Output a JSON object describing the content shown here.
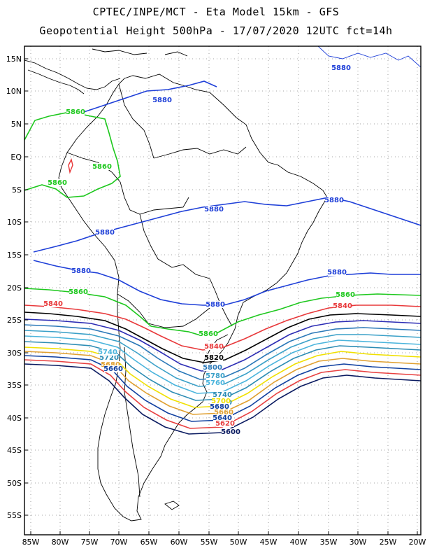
{
  "title_line1": "CPTEC/INPE/MCT  -   Eta Model 15km  -  GFS",
  "title_line2": "Geopotential Height 500hPa  -  17/07/2020 12UTC fct=14h",
  "lat_labels": [
    "15N",
    "10N",
    "5N",
    "EQ",
    "5S",
    "10S",
    "15S",
    "20S",
    "25S",
    "30S",
    "35S",
    "40S",
    "45S",
    "50S",
    "55S"
  ],
  "lon_labels": [
    "85W",
    "80W",
    "75W",
    "70W",
    "65W",
    "60W",
    "55W",
    "50W",
    "45W",
    "40W",
    "35W",
    "30W",
    "25W",
    "20W"
  ],
  "contour_colors": {
    "5880": "#1e3fd8",
    "5860": "#1ec81e",
    "5840": "#e8383a",
    "5820": "#000000",
    "5800": "#2c2cb4",
    "5780": "#2a78b8",
    "5760": "#3aa0c8",
    "5740": "#4ab4dc",
    "5720": "#2c8cb4",
    "5700": "#f0e000",
    "5680": "#e0a030",
    "5660": "#1040a0",
    "5640": "#e84040",
    "5620": "#0a1a60"
  },
  "contour_labels": [
    {
      "text": "5880",
      "key": "5880"
    },
    {
      "text": "5880",
      "key": "5880"
    },
    {
      "text": "5880",
      "key": "5880"
    },
    {
      "text": "5880",
      "key": "5880"
    },
    {
      "text": "5880",
      "key": "5880"
    },
    {
      "text": "5880",
      "key": "5880"
    },
    {
      "text": "5880",
      "key": "5880"
    },
    {
      "text": "5880",
      "key": "5880"
    },
    {
      "text": "5860",
      "key": "5860"
    },
    {
      "text": "5860",
      "key": "5860"
    },
    {
      "text": "5860",
      "key": "5860"
    },
    {
      "text": "5860",
      "key": "5860"
    },
    {
      "text": "5860",
      "key": "5860"
    },
    {
      "text": "5860",
      "key": "5860"
    },
    {
      "text": "5840",
      "key": "5840"
    },
    {
      "text": "5840",
      "key": "5840"
    },
    {
      "text": "5840",
      "key": "5840"
    },
    {
      "text": "5820",
      "key": "5820"
    },
    {
      "text": "5800",
      "key": "5780"
    },
    {
      "text": "5780",
      "key": "5760"
    },
    {
      "text": "5760",
      "key": "5740"
    },
    {
      "text": "5740",
      "key": "5720"
    },
    {
      "text": "5720",
      "key": "5720"
    },
    {
      "text": "5740",
      "key": "5740"
    },
    {
      "text": "5720",
      "key": "5720"
    },
    {
      "text": "5700",
      "key": "5700"
    },
    {
      "text": "5680",
      "key": "5660"
    },
    {
      "text": "5660",
      "key": "5680"
    },
    {
      "text": "5640",
      "key": "5660"
    },
    {
      "text": "5620",
      "key": "5640"
    },
    {
      "text": "5600",
      "key": "5620"
    },
    {
      "text": "5680",
      "key": "5680"
    },
    {
      "text": "5660",
      "key": "5660"
    }
  ]
}
